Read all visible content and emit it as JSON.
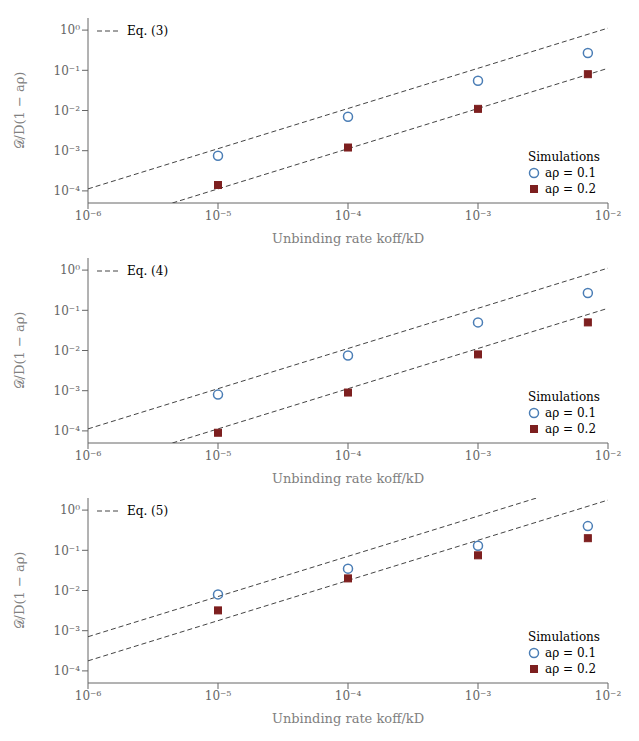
{
  "chart_data": [
    {
      "type": "scatter",
      "log": true,
      "grid": false,
      "legend": "lower right",
      "xlabel": "Unbinding rate koff/kD",
      "ylabel": "𝒟/D(1 − aρ)",
      "annotation": "Simulations",
      "xlim": [
        1e-06,
        0.01
      ],
      "ylim": [
        5e-05,
        2.0
      ],
      "xticks": [
        {
          "value": 1e-06,
          "label": "10⁻⁶"
        },
        {
          "value": 1e-05,
          "label": "10⁻⁵"
        },
        {
          "value": 0.0001,
          "label": "10⁻⁴"
        },
        {
          "value": 0.001,
          "label": "10⁻³"
        },
        {
          "value": 0.01,
          "label": "10⁻²"
        }
      ],
      "yticks": [
        {
          "value": 0.0001,
          "label": "10⁻⁴"
        },
        {
          "value": 0.001,
          "label": "10⁻³"
        },
        {
          "value": 0.01,
          "label": "10⁻²"
        },
        {
          "value": 0.1,
          "label": "10⁻¹"
        },
        {
          "value": 1,
          "label": "10⁰"
        }
      ],
      "series": [
        {
          "name": "Eq. (3)",
          "type": "line",
          "line_style": "dashed",
          "color": "#444444",
          "x": [
            1e-06,
            0.01
          ],
          "values": [
            0.0001122,
            1.122
          ]
        },
        {
          "type": "line",
          "line_style": "dashed",
          "color": "#444444",
          "x": [
            4.456e-06,
            0.01
          ],
          "values": [
            5e-05,
            0.1122
          ]
        },
        {
          "name": "aρ = 0.1",
          "type": "scatter",
          "marker": "circle",
          "color": "#4a7db5",
          "x": [
            1e-05,
            0.0001,
            0.001,
            0.007
          ],
          "values": [
            0.00075,
            0.007,
            0.055,
            0.27
          ]
        },
        {
          "name": "aρ = 0.2",
          "type": "scatter",
          "marker": "square",
          "color": "#7d1f1f",
          "x": [
            1e-05,
            0.0001,
            0.001,
            0.007
          ],
          "values": [
            0.00014,
            0.0012,
            0.011,
            0.08
          ]
        }
      ]
    },
    {
      "type": "scatter",
      "log": true,
      "grid": false,
      "legend": "lower right",
      "xlabel": "Unbinding rate koff/kD",
      "ylabel": "𝒟/D(1 − aρ)",
      "annotation": "Simulations",
      "xlim": [
        1e-06,
        0.01
      ],
      "ylim": [
        5e-05,
        2.0
      ],
      "xticks": [
        {
          "value": 1e-06,
          "label": "10⁻⁶"
        },
        {
          "value": 1e-05,
          "label": "10⁻⁵"
        },
        {
          "value": 0.0001,
          "label": "10⁻⁴"
        },
        {
          "value": 0.001,
          "label": "10⁻³"
        },
        {
          "value": 0.01,
          "label": "10⁻²"
        }
      ],
      "yticks": [
        {
          "value": 0.0001,
          "label": "10⁻⁴"
        },
        {
          "value": 0.001,
          "label": "10⁻³"
        },
        {
          "value": 0.01,
          "label": "10⁻²"
        },
        {
          "value": 0.1,
          "label": "10⁻¹"
        },
        {
          "value": 1,
          "label": "10⁰"
        }
      ],
      "series": [
        {
          "name": "Eq. (4)",
          "type": "line",
          "line_style": "dashed",
          "color": "#444444",
          "x": [
            1e-06,
            0.01
          ],
          "values": [
            0.0001122,
            1.122
          ]
        },
        {
          "type": "line",
          "line_style": "dashed",
          "color": "#444444",
          "x": [
            4.456e-06,
            0.01
          ],
          "values": [
            5e-05,
            0.1122
          ]
        },
        {
          "name": "aρ = 0.1",
          "type": "scatter",
          "marker": "circle",
          "color": "#4a7db5",
          "x": [
            1e-05,
            0.0001,
            0.001,
            0.007
          ],
          "values": [
            0.0008,
            0.0075,
            0.05,
            0.27
          ]
        },
        {
          "name": "aρ = 0.2",
          "type": "scatter",
          "marker": "square",
          "color": "#7d1f1f",
          "x": [
            1e-05,
            0.0001,
            0.001,
            0.007
          ],
          "values": [
            9e-05,
            0.0009,
            0.008,
            0.05
          ]
        }
      ]
    },
    {
      "type": "scatter",
      "log": true,
      "grid": false,
      "legend": "lower right",
      "xlabel": "Unbinding rate koff/kD",
      "ylabel": "𝒟/D(1 − aρ)",
      "annotation": "Simulations",
      "xlim": [
        1e-06,
        0.01
      ],
      "ylim": [
        5e-05,
        2.0
      ],
      "xticks": [
        {
          "value": 1e-06,
          "label": "10⁻⁶"
        },
        {
          "value": 1e-05,
          "label": "10⁻⁵"
        },
        {
          "value": 0.0001,
          "label": "10⁻⁴"
        },
        {
          "value": 0.001,
          "label": "10⁻³"
        },
        {
          "value": 0.01,
          "label": "10⁻²"
        }
      ],
      "yticks": [
        {
          "value": 0.0001,
          "label": "10⁻⁴"
        },
        {
          "value": 0.001,
          "label": "10⁻³"
        },
        {
          "value": 0.01,
          "label": "10⁻²"
        },
        {
          "value": 0.1,
          "label": "10⁻¹"
        },
        {
          "value": 1,
          "label": "10⁰"
        }
      ],
      "series": [
        {
          "name": "Eq. (5)",
          "type": "line",
          "line_style": "dashed",
          "color": "#444444",
          "x": [
            1e-06,
            0.002825
          ],
          "values": [
            0.0007079,
            2.0
          ]
        },
        {
          "type": "line",
          "line_style": "dashed",
          "color": "#444444",
          "x": [
            1e-06,
            0.01
          ],
          "values": [
            0.0001778,
            1.778
          ]
        },
        {
          "name": "aρ = 0.1",
          "type": "scatter",
          "marker": "circle",
          "color": "#4a7db5",
          "x": [
            1e-05,
            0.0001,
            0.001,
            0.007
          ],
          "values": [
            0.008,
            0.035,
            0.13,
            0.4
          ]
        },
        {
          "name": "aρ = 0.2",
          "type": "scatter",
          "marker": "square",
          "color": "#7d1f1f",
          "x": [
            1e-05,
            0.0001,
            0.001,
            0.007
          ],
          "values": [
            0.0032,
            0.02,
            0.075,
            0.2
          ]
        }
      ]
    }
  ]
}
